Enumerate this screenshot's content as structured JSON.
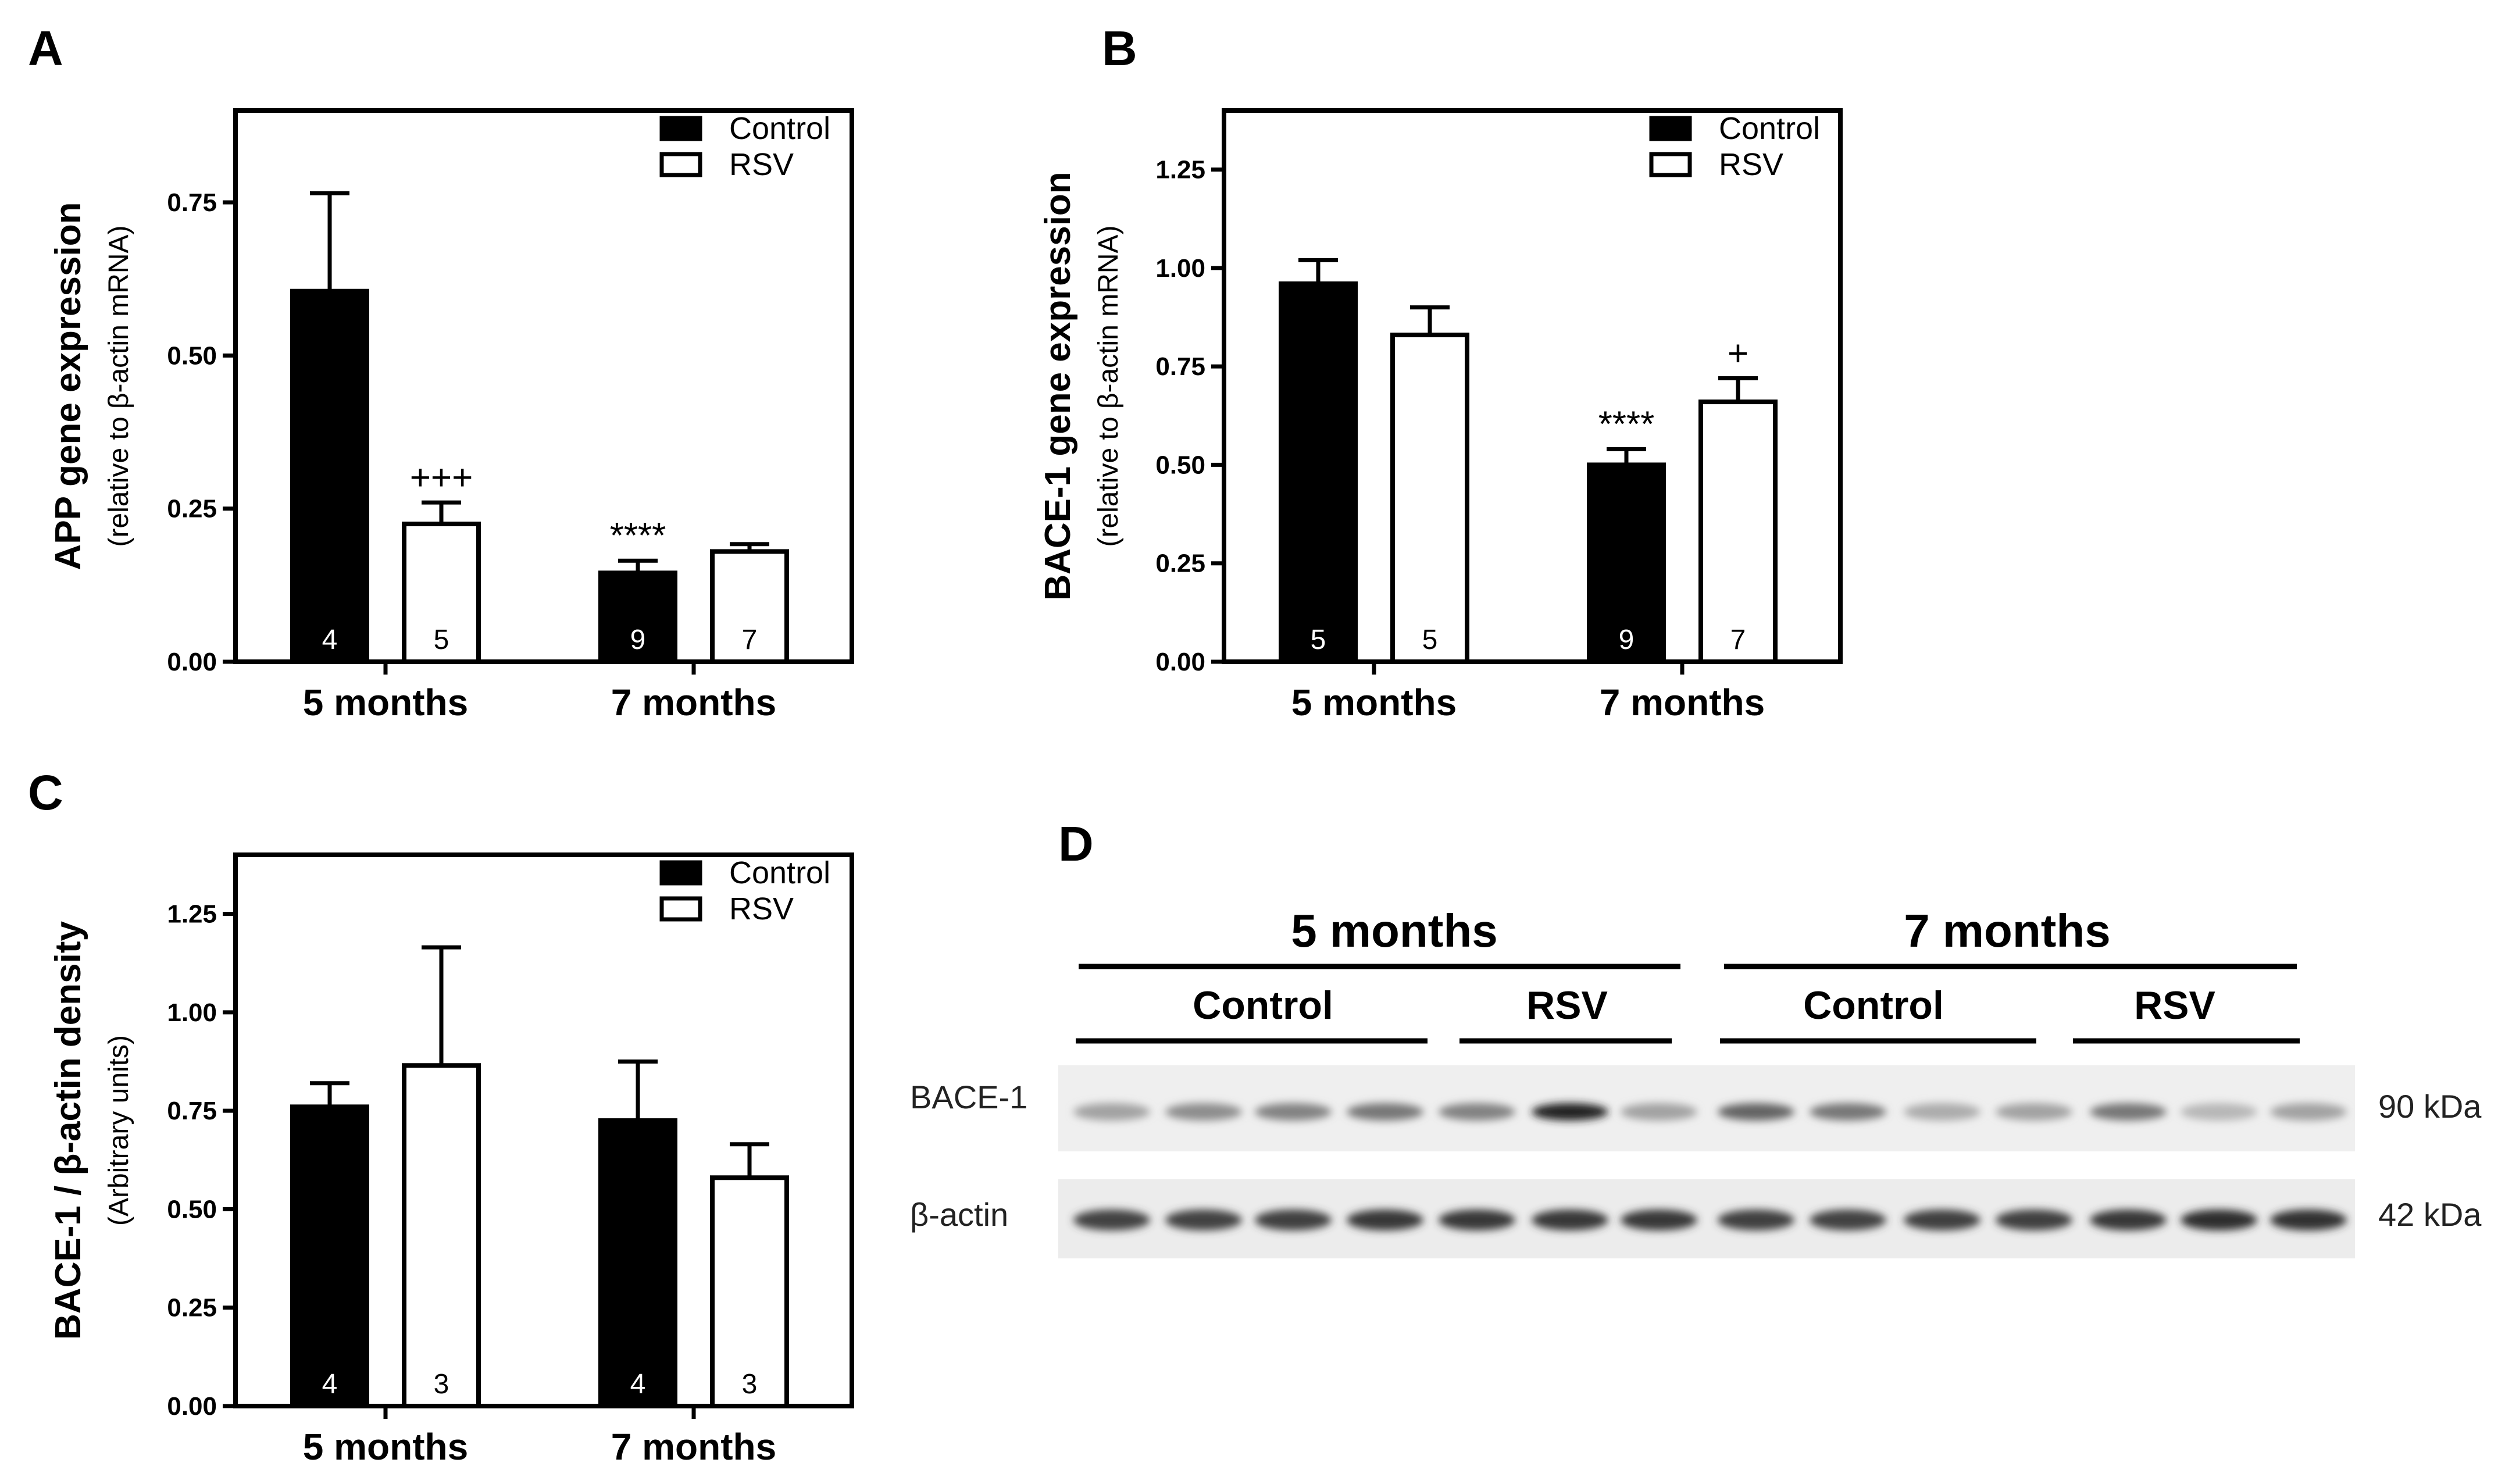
{
  "chart_data": [
    {
      "panel": "A",
      "type": "bar",
      "categories": [
        "5 months",
        "7 months"
      ],
      "ylabel": "APP gene expression",
      "ylabel_sub": "(relative to β-actin mRNA)",
      "ylim": [
        0,
        0.9
      ],
      "yticks": [
        "0.00",
        "0.25",
        "0.50",
        "0.75"
      ],
      "legend": "top-right",
      "series": [
        {
          "name": "Control",
          "color": "#000000",
          "values": [
            0.605,
            0.145
          ],
          "errors": [
            0.16,
            0.02
          ],
          "n": [
            "4",
            "9"
          ],
          "marks": [
            "",
            "****"
          ]
        },
        {
          "name": "RSV",
          "color": "#ffffff",
          "values": [
            0.225,
            0.18
          ],
          "errors": [
            0.035,
            0.012
          ],
          "n": [
            "5",
            "7"
          ],
          "marks": [
            "+++",
            ""
          ]
        }
      ]
    },
    {
      "panel": "B",
      "type": "bar",
      "categories": [
        "5 months",
        "7 months"
      ],
      "ylabel": "BACE-1 gene expression",
      "ylabel_sub": "(relative to β-actin mRNA)",
      "ylim": [
        0,
        1.4
      ],
      "yticks": [
        "0.00",
        "0.25",
        "0.50",
        "0.75",
        "1.00",
        "1.25"
      ],
      "legend": "top-right",
      "series": [
        {
          "name": "Control",
          "color": "#000000",
          "values": [
            0.96,
            0.5
          ],
          "errors": [
            0.06,
            0.04
          ],
          "n": [
            "5",
            "9"
          ],
          "marks": [
            "",
            "****"
          ]
        },
        {
          "name": "RSV",
          "color": "#ffffff",
          "values": [
            0.83,
            0.66
          ],
          "errors": [
            0.07,
            0.06
          ],
          "n": [
            "5",
            "7"
          ],
          "marks": [
            "",
            "+"
          ]
        }
      ]
    },
    {
      "panel": "C",
      "type": "bar",
      "categories": [
        "5 months",
        "7 months"
      ],
      "ylabel": "BACE-1 / β-actin density",
      "ylabel_sub": "(Arbitrary units)",
      "ylim": [
        0,
        1.4
      ],
      "yticks": [
        "0.00",
        "0.25",
        "0.50",
        "0.75",
        "1.00",
        "1.25"
      ],
      "legend": "top-right",
      "series": [
        {
          "name": "Control",
          "color": "#000000",
          "values": [
            0.76,
            0.725
          ],
          "errors": [
            0.06,
            0.15
          ],
          "n": [
            "4",
            "4"
          ],
          "marks": [
            "",
            ""
          ]
        },
        {
          "name": "RSV",
          "color": "#ffffff",
          "values": [
            0.865,
            0.58
          ],
          "errors": [
            0.3,
            0.085
          ],
          "n": [
            "3",
            "3"
          ],
          "marks": [
            "",
            ""
          ]
        }
      ]
    }
  ],
  "western_blot": {
    "panel": "D",
    "groups": [
      "5 months",
      "7 months"
    ],
    "subgroups": [
      "Control",
      "RSV",
      "Control",
      "RSV"
    ],
    "rows": [
      {
        "label": "BACE-1",
        "size": "90 kDa"
      },
      {
        "label": "β-actin",
        "size": "42 kDa"
      }
    ],
    "band_intensity": {
      "BACE-1": [
        0.35,
        0.45,
        0.5,
        0.55,
        0.5,
        0.95,
        0.35,
        0.65,
        0.55,
        0.3,
        0.35,
        0.55,
        0.25,
        0.35
      ],
      "β-actin": [
        0.8,
        0.8,
        0.82,
        0.85,
        0.85,
        0.85,
        0.85,
        0.82,
        0.8,
        0.82,
        0.82,
        0.85,
        0.9,
        0.88
      ]
    }
  }
}
